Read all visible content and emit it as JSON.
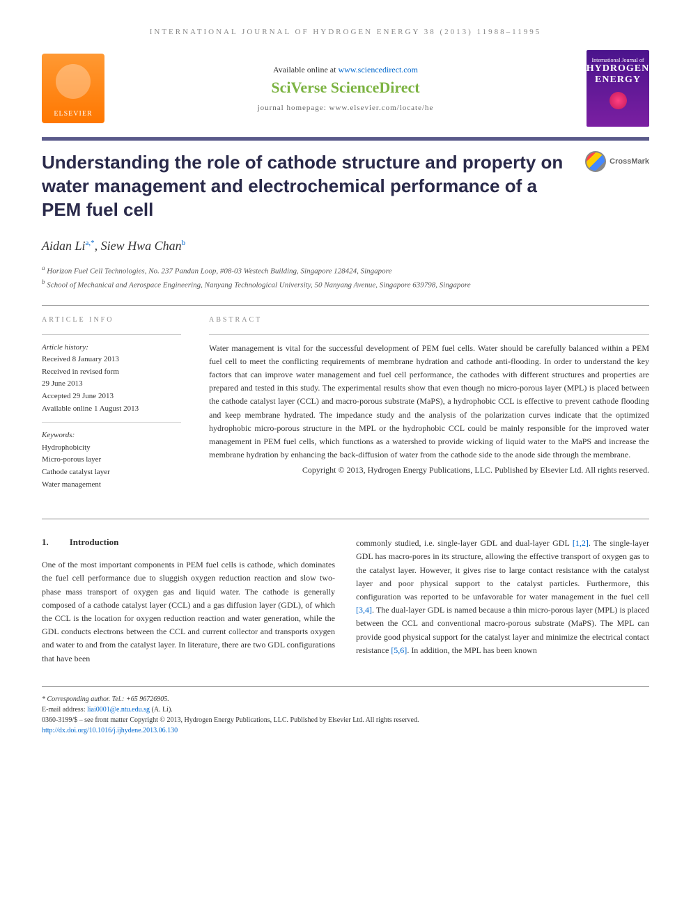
{
  "journal_header": "INTERNATIONAL JOURNAL OF HYDROGEN ENERGY 38 (2013) 11988–11995",
  "elsevier_label": "ELSEVIER",
  "available_text": "Available online at ",
  "sciencedirect_url": "www.sciencedirect.com",
  "sciverse_text": "SciVerse ScienceDirect",
  "homepage_text": "journal homepage: www.elsevier.com/locate/he",
  "journal_cover": {
    "subtitle": "International Journal of",
    "title1": "HYDROGEN",
    "title2": "ENERGY"
  },
  "article_title": "Understanding the role of cathode structure and property on water management and electrochemical performance of a PEM fuel cell",
  "crossmark_label": "CrossMark",
  "authors": {
    "author1": "Aidan Li",
    "author1_sup": "a,*",
    "author2": "Siew Hwa Chan",
    "author2_sup": "b"
  },
  "affiliations": {
    "a": "Horizon Fuel Cell Technologies, No. 237 Pandan Loop, #08-03 Westech Building, Singapore 128424, Singapore",
    "b": "School of Mechanical and Aerospace Engineering, Nanyang Technological University, 50 Nanyang Avenue, Singapore 639798, Singapore"
  },
  "article_info_label": "ARTICLE INFO",
  "abstract_label": "ABSTRACT",
  "history": {
    "label": "Article history:",
    "received": "Received 8 January 2013",
    "revised": "Received in revised form",
    "revised_date": "29 June 2013",
    "accepted": "Accepted 29 June 2013",
    "online": "Available online 1 August 2013"
  },
  "keywords": {
    "label": "Keywords:",
    "k1": "Hydrophobicity",
    "k2": "Micro-porous layer",
    "k3": "Cathode catalyst layer",
    "k4": "Water management"
  },
  "abstract_text": "Water management is vital for the successful development of PEM fuel cells. Water should be carefully balanced within a PEM fuel cell to meet the conflicting requirements of membrane hydration and cathode anti-flooding. In order to understand the key factors that can improve water management and fuel cell performance, the cathodes with different structures and properties are prepared and tested in this study. The experimental results show that even though no micro-porous layer (MPL) is placed between the cathode catalyst layer (CCL) and macro-porous substrate (MaPS), a hydrophobic CCL is effective to prevent cathode flooding and keep membrane hydrated. The impedance study and the analysis of the polarization curves indicate that the optimized hydrophobic micro-porous structure in the MPL or the hydrophobic CCL could be mainly responsible for the improved water management in PEM fuel cells, which functions as a watershed to provide wicking of liquid water to the MaPS and increase the membrane hydration by enhancing the back-diffusion of water from the cathode side to the anode side through the membrane.",
  "copyright": "Copyright © 2013, Hydrogen Energy Publications, LLC. Published by Elsevier Ltd. All rights reserved.",
  "section1": {
    "num": "1.",
    "title": "Introduction"
  },
  "body_col1": "One of the most important components in PEM fuel cells is cathode, which dominates the fuel cell performance due to sluggish oxygen reduction reaction and slow two-phase mass transport of oxygen gas and liquid water. The cathode is generally composed of a cathode catalyst layer (CCL) and a gas diffusion layer (GDL), of which the CCL is the location for oxygen reduction reaction and water generation, while the GDL conducts electrons between the CCL and current collector and transports oxygen and water to and from the catalyst layer. In literature, there are two GDL configurations that have been",
  "body_col2_p1": "commonly studied, i.e. single-layer GDL and dual-layer GDL ",
  "body_col2_ref1": "[1,2]",
  "body_col2_p2": ". The single-layer GDL has macro-pores in its structure, allowing the effective transport of oxygen gas to the catalyst layer. However, it gives rise to large contact resistance with the catalyst layer and poor physical support to the catalyst particles. Furthermore, this configuration was reported to be unfavorable for water management in the fuel cell ",
  "body_col2_ref2": "[3,4]",
  "body_col2_p3": ". The dual-layer GDL is named because a thin micro-porous layer (MPL) is placed between the CCL and conventional macro-porous substrate (MaPS). The MPL can provide good physical support for the catalyst layer and minimize the electrical contact resistance ",
  "body_col2_ref3": "[5,6]",
  "body_col2_p4": ". In addition, the MPL has been known",
  "footer": {
    "corresponding": "* Corresponding author. Tel.: +65 96726905.",
    "email_label": "E-mail address: ",
    "email": "liai0001@e.ntu.edu.sg",
    "email_suffix": " (A. Li).",
    "issn": "0360-3199/$ – see front matter Copyright © 2013, Hydrogen Energy Publications, LLC. Published by Elsevier Ltd. All rights reserved.",
    "doi": "http://dx.doi.org/10.1016/j.ijhydene.2013.06.130"
  }
}
